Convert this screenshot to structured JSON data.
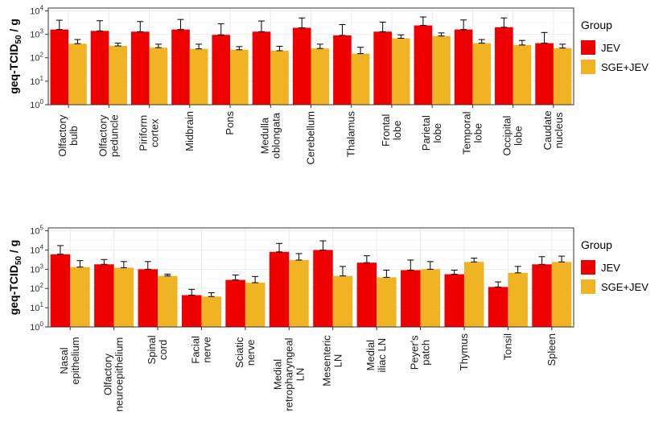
{
  "colors": {
    "jev": "#EE0000",
    "sge_jev": "#F0B323"
  },
  "chart_data": [
    {
      "type": "bar",
      "scale": "log10",
      "ylabel": "geq-TCID50 / g",
      "ylim": [
        1,
        10000
      ],
      "tick_exponents": [
        0,
        1,
        2,
        3,
        4
      ],
      "legend": {
        "title": "Group",
        "entries": [
          "JEV",
          "SGE+JEV"
        ],
        "position": "right"
      },
      "categories": [
        [
          "Olfactory",
          "bulb"
        ],
        [
          "Olfactory",
          "peduncle"
        ],
        [
          "Piriform",
          "cortex"
        ],
        [
          "Midbrain"
        ],
        [
          "Pons"
        ],
        [
          "Medulla",
          "oblongata"
        ],
        [
          "Cerebellum"
        ],
        [
          "Thalamus"
        ],
        [
          "Frontal",
          "lobe"
        ],
        [
          "Parietal",
          "lobe"
        ],
        [
          "Temporal",
          "lobe"
        ],
        [
          "Occipital",
          "lobe"
        ],
        [
          "Caudate",
          "nucleus"
        ]
      ],
      "series": [
        {
          "name": "JEV",
          "values": [
            1600,
            1400,
            1300,
            1600,
            950,
            1300,
            1900,
            900,
            1300,
            2400,
            1600,
            2000,
            420
          ],
          "upper": [
            4000,
            3800,
            3500,
            4300,
            2800,
            3700,
            5000,
            2600,
            3300,
            5500,
            4100,
            5000,
            1200
          ]
        },
        {
          "name": "SGE+JEV",
          "values": [
            400,
            320,
            270,
            240,
            220,
            200,
            250,
            150,
            680,
            850,
            420,
            350,
            260
          ],
          "upper": [
            600,
            420,
            380,
            380,
            300,
            310,
            380,
            280,
            950,
            1150,
            600,
            550,
            380
          ]
        }
      ]
    },
    {
      "type": "bar",
      "scale": "log10",
      "ylabel": "geq-TCID50 / g",
      "ylim": [
        1,
        100000
      ],
      "tick_exponents": [
        0,
        1,
        2,
        3,
        4,
        5
      ],
      "legend": {
        "title": "Group",
        "entries": [
          "JEV",
          "SGE+JEV"
        ],
        "position": "right"
      },
      "categories": [
        [
          "Nasal",
          "epithelium"
        ],
        [
          "Olfactory",
          "neuroepithelium"
        ],
        [
          "Spinal",
          "cord"
        ],
        [
          "Facial",
          "nerve"
        ],
        [
          "Sciatic",
          "nerve"
        ],
        [
          "Medial",
          "retropharyngeal",
          "LN"
        ],
        [
          "Mesenteric",
          "LN"
        ],
        [
          "Medial",
          "iliac LN"
        ],
        [
          "Peyer's",
          "patch"
        ],
        [
          "Thymus"
        ],
        [
          "Tonsil"
        ],
        [
          "Spleen"
        ]
      ],
      "series": [
        {
          "name": "JEV",
          "values": [
            6000,
            1800,
            1000,
            45,
            280,
            8000,
            10000,
            2200,
            900,
            550,
            120,
            1800
          ],
          "upper": [
            17000,
            3200,
            2500,
            90,
            500,
            22000,
            30000,
            5000,
            3000,
            900,
            220,
            4500
          ]
        },
        {
          "name": "SGE+JEV",
          "values": [
            1300,
            1200,
            450,
            38,
            200,
            3000,
            450,
            380,
            1000,
            2400,
            650,
            2400
          ],
          "upper": [
            2800,
            2500,
            560,
            60,
            420,
            6500,
            1400,
            900,
            2500,
            3800,
            1400,
            4800
          ]
        }
      ]
    }
  ]
}
